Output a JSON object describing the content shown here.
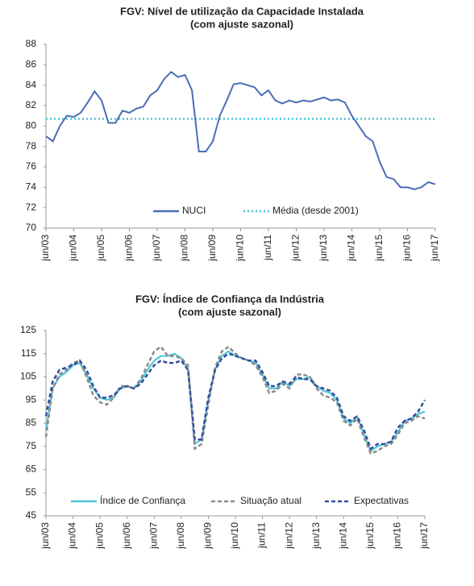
{
  "chart_data": [
    {
      "type": "line",
      "title": "FGV: Nível de utilização da Capacidade Instalada",
      "subtitle": "(com ajuste sazonal)",
      "categories": [
        "jun/03",
        null,
        null,
        null,
        "jun/04",
        null,
        null,
        null,
        "jun/05",
        null,
        null,
        null,
        "jun/06",
        null,
        null,
        null,
        "jun/07",
        null,
        null,
        null,
        "jun/08",
        null,
        null,
        null,
        "jun/09",
        null,
        null,
        null,
        "jun/10",
        null,
        null,
        null,
        "jun/11",
        null,
        null,
        null,
        "jun/12",
        null,
        null,
        null,
        "jun/13",
        null,
        null,
        null,
        "jun/14",
        null,
        null,
        null,
        "jun/15",
        null,
        null,
        null,
        "jun/16",
        null,
        null,
        null,
        "jun/17"
      ],
      "series": [
        {
          "name": "NUCI",
          "color": "#4a6db5",
          "style": "solid",
          "values": [
            79.0,
            78.5,
            80.0,
            81.0,
            80.9,
            81.3,
            82.3,
            83.4,
            82.5,
            80.3,
            80.3,
            81.5,
            81.3,
            81.7,
            81.9,
            83.0,
            83.5,
            84.6,
            85.3,
            84.8,
            85.0,
            83.5,
            77.5,
            77.5,
            78.5,
            81.0,
            82.5,
            84.1,
            84.2,
            84.0,
            83.8,
            83.0,
            83.5,
            82.5,
            82.2,
            82.5,
            82.3,
            82.5,
            82.4,
            82.6,
            82.8,
            82.5,
            82.6,
            82.3,
            81.0,
            80.0,
            79.0,
            78.5,
            76.5,
            75.0,
            74.8,
            74.0,
            74.0,
            73.8,
            74.0,
            74.5,
            74.3
          ]
        }
      ],
      "reference_line": {
        "name": "Média (desde 2001)",
        "value": 80.7,
        "color": "#4bc3d6",
        "style": "dotted"
      },
      "ylim": [
        70,
        88
      ],
      "yticks": [
        70,
        72,
        74,
        76,
        78,
        80,
        82,
        84,
        86,
        88
      ],
      "grid": false,
      "legend": "bottom"
    },
    {
      "type": "line",
      "title": "FGV: Índice de Confiança da Indústria",
      "subtitle": "(com ajuste sazonal)",
      "categories": [
        "jun/03",
        null,
        null,
        null,
        "jun/04",
        null,
        null,
        null,
        "jun/05",
        null,
        null,
        null,
        "jun/06",
        null,
        null,
        null,
        "jun/07",
        null,
        null,
        null,
        "jun/08",
        null,
        null,
        null,
        "jun/09",
        null,
        null,
        null,
        "jun/10",
        null,
        null,
        null,
        "jun/11",
        null,
        null,
        null,
        "jun/12",
        null,
        null,
        null,
        "jun/13",
        null,
        null,
        null,
        "jun/14",
        null,
        null,
        null,
        "jun/15",
        null,
        null,
        null,
        "jun/16",
        null,
        null,
        null,
        "jun/17"
      ],
      "series": [
        {
          "name": "Índice de Confiança",
          "color": "#4bc3d6",
          "style": "solid",
          "values": [
            82,
            100,
            105,
            107,
            110,
            111,
            106,
            100,
            96,
            95,
            96,
            100,
            101,
            100,
            103,
            108,
            112,
            114,
            114,
            115,
            113,
            108,
            76,
            78,
            95,
            108,
            114,
            116,
            114,
            113,
            112,
            111,
            106,
            100,
            100,
            103,
            101,
            104,
            104,
            105,
            101,
            99,
            98,
            95,
            87,
            85,
            88,
            80,
            73,
            75,
            76,
            77,
            81,
            86,
            87,
            89,
            90
          ]
        },
        {
          "name": "Situação atual",
          "color": "#8a8a8a",
          "style": "dashed",
          "values": [
            79,
            100,
            106,
            108,
            111,
            112,
            105,
            97,
            94,
            93,
            96,
            101,
            101,
            100,
            104,
            110,
            116,
            118,
            114,
            114,
            113,
            110,
            74,
            76,
            93,
            109,
            116,
            118,
            115,
            113,
            112,
            110,
            105,
            98,
            99,
            102,
            100,
            106,
            106,
            105,
            100,
            97,
            96,
            94,
            86,
            84,
            87,
            79,
            72,
            73,
            75,
            76,
            80,
            85,
            86,
            88,
            87
          ]
        },
        {
          "name": "Expectativas",
          "color": "#2f4fa0",
          "style": "dashed",
          "values": [
            88,
            103,
            108,
            109,
            110,
            112,
            108,
            101,
            96,
            96,
            97,
            100,
            101,
            100,
            102,
            106,
            110,
            112,
            111,
            111,
            112,
            108,
            78,
            78,
            96,
            108,
            113,
            115,
            114,
            113,
            112,
            112,
            107,
            101,
            101,
            103,
            102,
            105,
            104,
            104,
            101,
            100,
            99,
            96,
            88,
            86,
            88,
            82,
            74,
            76,
            76,
            77,
            83,
            86,
            87,
            90,
            95
          ]
        }
      ],
      "ylim": [
        45,
        125
      ],
      "yticks": [
        45,
        55,
        65,
        75,
        85,
        95,
        105,
        115,
        125
      ],
      "grid": false,
      "legend": "bottom"
    }
  ]
}
